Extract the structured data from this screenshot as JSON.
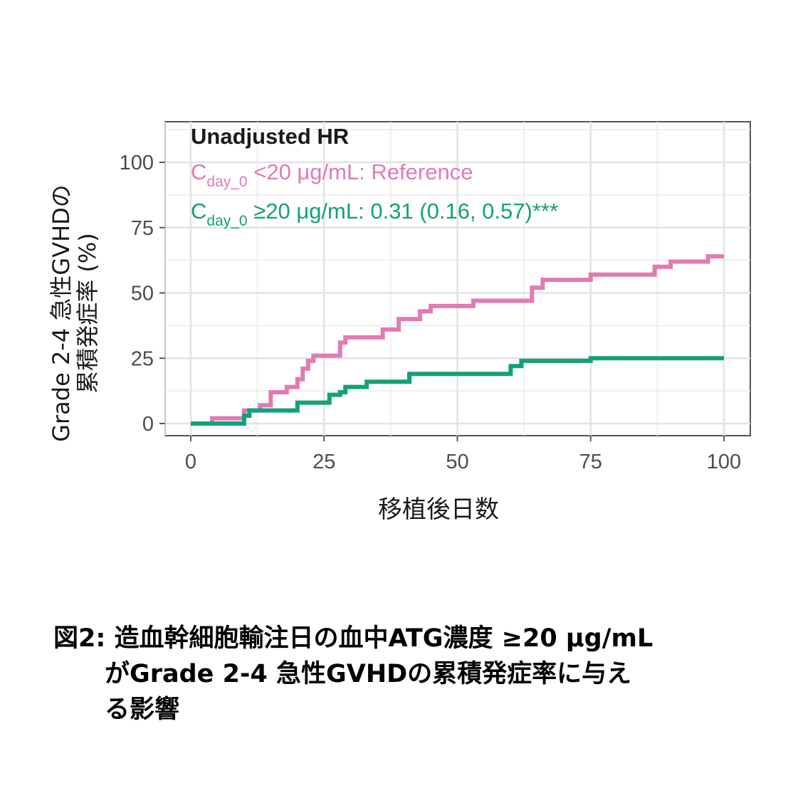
{
  "chart_data": {
    "type": "line",
    "step": true,
    "ylabel_line1": "Grade 2-4 急性GVHDの",
    "ylabel_line2": "累積発症率 (%)",
    "xlabel": "移植後日数",
    "xlim": [
      0,
      100
    ],
    "ylim": [
      0,
      100
    ],
    "x_ticks": [
      0,
      25,
      50,
      75,
      100
    ],
    "y_ticks": [
      0,
      25,
      50,
      75,
      100
    ],
    "grid": true,
    "annotation": {
      "title": "Unadjusted HR",
      "line1_main": "C",
      "line1_sub": "day_0",
      "line1_rest": " <20 μg/mL: Reference",
      "line2_main": "C",
      "line2_sub": "day_0",
      "line2_rest": " ≥20 μg/mL: 0.31 (0.16, 0.57)***"
    },
    "series": [
      {
        "color": "#e07bb3",
        "x": [
          0,
          4,
          10,
          11,
          13,
          15,
          18,
          20,
          21,
          22,
          23,
          25,
          28,
          29,
          30,
          36,
          39,
          43,
          45,
          53,
          63,
          64,
          66,
          70,
          75,
          87,
          90,
          97,
          100
        ],
        "y": [
          0,
          2,
          5,
          5,
          7,
          12,
          14,
          17,
          21,
          24,
          26,
          26,
          31,
          33,
          33,
          36,
          40,
          43,
          45,
          47,
          47,
          52,
          55,
          55,
          57,
          60,
          62,
          64,
          64
        ]
      },
      {
        "color": "#14a079",
        "x": [
          0,
          10,
          11,
          14,
          17,
          20,
          23,
          26,
          28,
          29,
          30,
          33,
          36,
          41,
          59,
          60,
          62,
          75,
          100
        ],
        "y": [
          0,
          3,
          5,
          5,
          5,
          8,
          8,
          11,
          12,
          14,
          14,
          16,
          16,
          19,
          19,
          22,
          24,
          25,
          25
        ]
      }
    ]
  },
  "caption": {
    "line1": "図2: 造血幹細胞輸注日の血中ATG濃度 ≥20 μg/mL",
    "line2": "がGrade 2-4 急性GVHDの累積発症率に与え",
    "line3": "る影響"
  }
}
